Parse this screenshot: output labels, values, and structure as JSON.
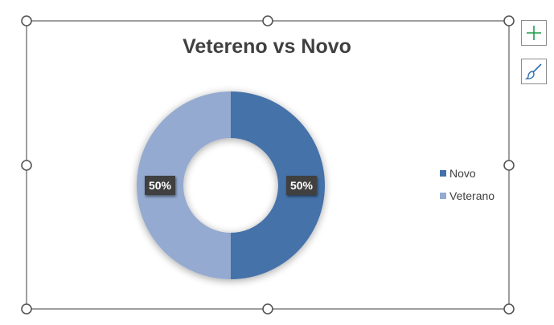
{
  "colors": {
    "novo": "#4472a8",
    "veterano": "#94aad0",
    "title": "#404040",
    "frame": "#6a6a6a",
    "label_bg": "#404040",
    "label_text": "#ffffff",
    "add_icon": "#1e9c4a",
    "brush_icon": "#2f6fb3"
  },
  "side_buttons": [
    {
      "name": "chart-elements-button",
      "icon": "plus-icon"
    },
    {
      "name": "chart-styles-button",
      "icon": "paintbrush-icon"
    }
  ],
  "chart_data": {
    "type": "pie",
    "subtype": "doughnut",
    "title": "Vetereno vs Novo",
    "slices": [
      {
        "name": "Novo",
        "value": 50,
        "label": "50%"
      },
      {
        "name": "Veterano",
        "value": 50,
        "label": "50%"
      }
    ],
    "legend": {
      "position": "right",
      "entries": [
        "Novo",
        "Veterano"
      ]
    }
  }
}
